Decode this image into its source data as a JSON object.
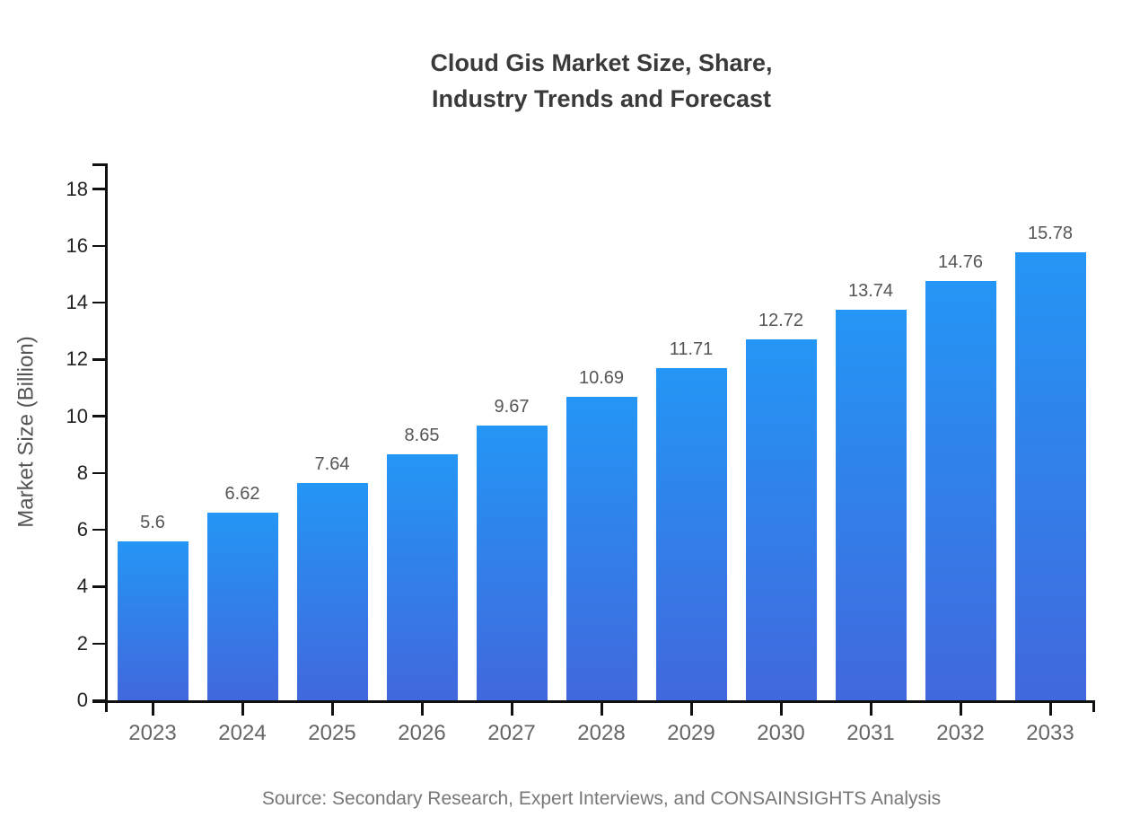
{
  "page": {
    "background": "#ffffff"
  },
  "chart_data": {
    "type": "bar",
    "title": "Cloud Gis Market Size, Share, Industry Trends and Forecast",
    "title_lines": [
      "Cloud Gis Market Size, Share,",
      "Industry Trends and Forecast"
    ],
    "categories": [
      "2023",
      "2024",
      "2025",
      "2026",
      "2027",
      "2028",
      "2029",
      "2030",
      "2031",
      "2032",
      "2033"
    ],
    "values": [
      5.6,
      6.62,
      7.64,
      8.65,
      9.67,
      10.69,
      11.71,
      12.72,
      13.74,
      14.76,
      15.78
    ],
    "value_labels": [
      "5.6",
      "6.62",
      "7.64",
      "8.65",
      "9.67",
      "10.69",
      "11.71",
      "12.72",
      "13.74",
      "14.76",
      "15.78"
    ],
    "xlabel": "",
    "ylabel": "Market Size (Billion)",
    "yticks": [
      0,
      2,
      4,
      6,
      8,
      10,
      12,
      14,
      16,
      18
    ],
    "ylim": [
      0,
      18.9
    ],
    "grid": false,
    "legend_position": "none",
    "bar_gradient_top": "#2496f5",
    "bar_gradient_bottom": "#4168dd",
    "axis_color": "#111111"
  },
  "source_note": "Source: Secondary Research, Expert Interviews, and CONSAINSIGHTS Analysis"
}
